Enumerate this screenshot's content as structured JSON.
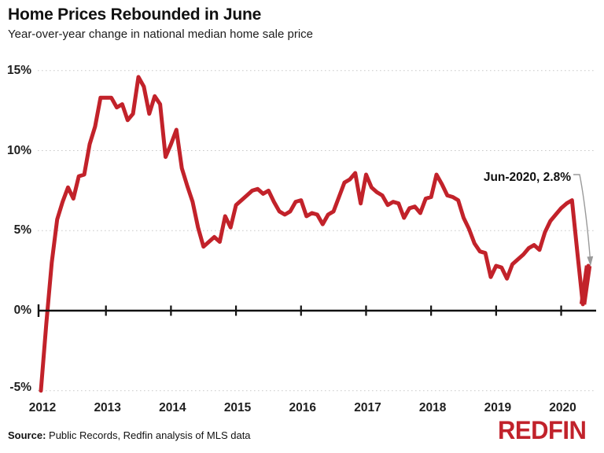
{
  "header": {
    "title": "Home Prices Rebounded in June",
    "subtitle": "Year-over-year change in national median home sale price"
  },
  "chart_data": {
    "type": "line",
    "title": "Home Prices Rebounded in June",
    "subtitle": "Year-over-year change in national median home sale price",
    "frequency": "monthly",
    "x_start": "Jan 2012",
    "x_end": "Jun 2020",
    "ylabel": "Year-over-year change in median home sale price (%)",
    "ylim": [
      -5,
      15
    ],
    "grid": "dotted horizontal gridlines at -5, 5, 10, 15; solid black zero axis with year tick marks",
    "legend": "none",
    "y_ticks": [
      {
        "value": 15,
        "label": "15%"
      },
      {
        "value": 10,
        "label": "10%"
      },
      {
        "value": 5,
        "label": "5%"
      },
      {
        "value": 0,
        "label": "0%"
      },
      {
        "value": -5,
        "label": "-5%"
      }
    ],
    "x_tick_labels": [
      "2012",
      "2013",
      "2014",
      "2015",
      "2016",
      "2017",
      "2018",
      "2019",
      "2020"
    ],
    "series": [
      {
        "name": "YoY change in national median home sale price",
        "unit": "%",
        "values": [
          -5.0,
          -0.8,
          3.0,
          5.7,
          6.8,
          7.7,
          7.0,
          8.4,
          8.5,
          10.4,
          11.5,
          13.3,
          13.3,
          13.3,
          12.7,
          12.9,
          11.9,
          12.3,
          14.6,
          14.0,
          12.3,
          13.4,
          12.9,
          9.6,
          10.4,
          11.3,
          8.9,
          7.8,
          6.8,
          5.2,
          4.0,
          4.3,
          4.6,
          4.3,
          5.9,
          5.2,
          6.6,
          6.9,
          7.2,
          7.5,
          7.6,
          7.3,
          7.5,
          6.8,
          6.2,
          6.0,
          6.2,
          6.8,
          6.9,
          5.9,
          6.1,
          6.0,
          5.4,
          6.0,
          6.2,
          7.1,
          8.0,
          8.2,
          8.6,
          6.7,
          8.5,
          7.7,
          7.4,
          7.2,
          6.6,
          6.8,
          6.7,
          5.8,
          6.4,
          6.5,
          6.1,
          7.0,
          7.1,
          8.5,
          7.9,
          7.2,
          7.1,
          6.9,
          5.8,
          5.1,
          4.2,
          3.7,
          3.6,
          2.1,
          2.8,
          2.7,
          2.0,
          2.9,
          3.2,
          3.5,
          3.9,
          4.1,
          3.8,
          4.9,
          5.6,
          6.0,
          6.4,
          6.7,
          6.9,
          3.6,
          0.4,
          2.8
        ]
      }
    ],
    "annotation": {
      "label": "Jun-2020, 2.8%",
      "x": "Jun 2020",
      "y": 2.8
    }
  },
  "footer": {
    "source_label": "Source:",
    "source_text": " Public Records, Redfin analysis of MLS data",
    "brand": "REDFIN"
  },
  "colors": {
    "line": "#c2222a",
    "logo": "#c1222b",
    "axis": "#111111",
    "gridline": "#c9c9c9",
    "annotation_line": "#9a9a9a"
  }
}
